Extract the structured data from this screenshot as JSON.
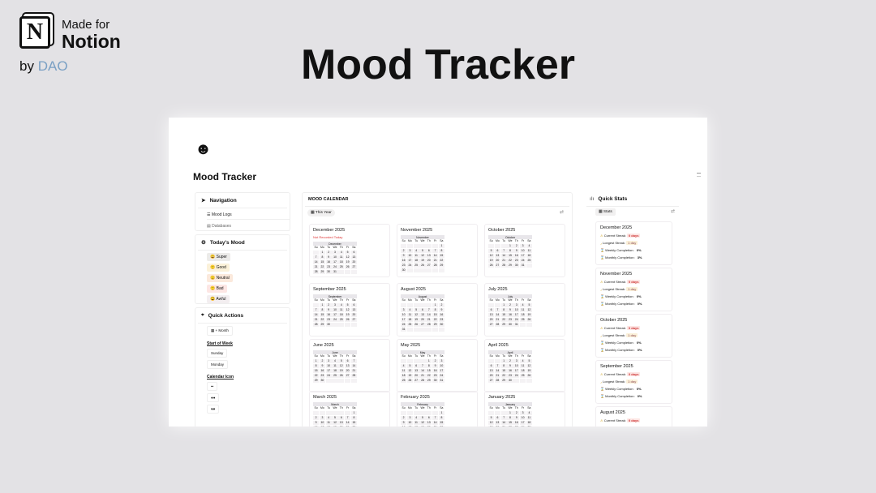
{
  "brand": {
    "logo_letter": "N",
    "made_for": "Made for",
    "notion": "Notion",
    "by": "by",
    "author": "DAO"
  },
  "headline": "Mood Tracker",
  "page": {
    "icon": "smiley-icon",
    "title": "Mood Tracker"
  },
  "navigation": {
    "title": "Navigation",
    "items": [
      {
        "icon": "☰",
        "label": "Mood Logs"
      },
      {
        "icon": "▤",
        "label": "Databases"
      }
    ]
  },
  "todays_mood": {
    "title": "Today's Mood",
    "moods": [
      {
        "emoji": "😀",
        "label": "Super",
        "color": "#ecebe9"
      },
      {
        "emoji": "🙂",
        "label": "Good",
        "color": "#fbf1d9"
      },
      {
        "emoji": "😐",
        "label": "Neutral",
        "color": "#fbe9dc"
      },
      {
        "emoji": "🙁",
        "label": "Bad",
        "color": "#fde6e4"
      },
      {
        "emoji": "😫",
        "label": "Awful",
        "color": "#f3eef0"
      }
    ]
  },
  "quick_actions": {
    "title": "Quick Actions",
    "new_month": "+ Month",
    "start_of_week": "Start of Week",
    "week_options": [
      "Sunday",
      "Monday"
    ],
    "calendar_icon": "Calendar Icon",
    "icon_options": [
      "••",
      "●●",
      "♥♥"
    ]
  },
  "calendar": {
    "title": "MOOD CALENDAR",
    "view": "This Year",
    "not_recorded": "Not Recorded Today",
    "weekdays": [
      "Su",
      "Mo",
      "Tu",
      "We",
      "Th",
      "Fr",
      "Sa"
    ],
    "year": 2025,
    "months": [
      {
        "name": "December",
        "title": "December 2025",
        "m": 12
      },
      {
        "name": "November",
        "title": "November 2025",
        "m": 11
      },
      {
        "name": "October",
        "title": "October 2025",
        "m": 10
      },
      {
        "name": "September",
        "title": "September 2025",
        "m": 9
      },
      {
        "name": "August",
        "title": "August 2025",
        "m": 8
      },
      {
        "name": "July",
        "title": "July 2025",
        "m": 7
      },
      {
        "name": "June",
        "title": "June 2025",
        "m": 6
      },
      {
        "name": "May",
        "title": "May 2025",
        "m": 5
      },
      {
        "name": "April",
        "title": "April 2025",
        "m": 4
      },
      {
        "name": "March",
        "title": "March 2025",
        "m": 3
      },
      {
        "name": "February",
        "title": "February 2025",
        "m": 2
      },
      {
        "name": "January",
        "title": "January 2025",
        "m": 1
      }
    ]
  },
  "quick_stats": {
    "title": "Quick Stats",
    "view": "Stats",
    "labels": {
      "current": "Current Streak:",
      "longest": "Longest Streak:",
      "weekly": "Weekly Completion:",
      "monthly": "Monthly Completion:"
    },
    "months": [
      {
        "title": "December 2025",
        "current": "0 days",
        "longest": "1 day",
        "weekly": "0%",
        "monthly": "3%"
      },
      {
        "title": "November 2025",
        "current": "0 days",
        "longest": "1 day",
        "weekly": "0%",
        "monthly": "0%"
      },
      {
        "title": "October 2025",
        "current": "0 days",
        "longest": "1 day",
        "weekly": "0%",
        "monthly": "0%"
      },
      {
        "title": "September 2025",
        "current": "0 days",
        "longest": "1 day",
        "weekly": "0%",
        "monthly": "0%"
      },
      {
        "title": "August 2025",
        "current": "0 days"
      }
    ]
  }
}
